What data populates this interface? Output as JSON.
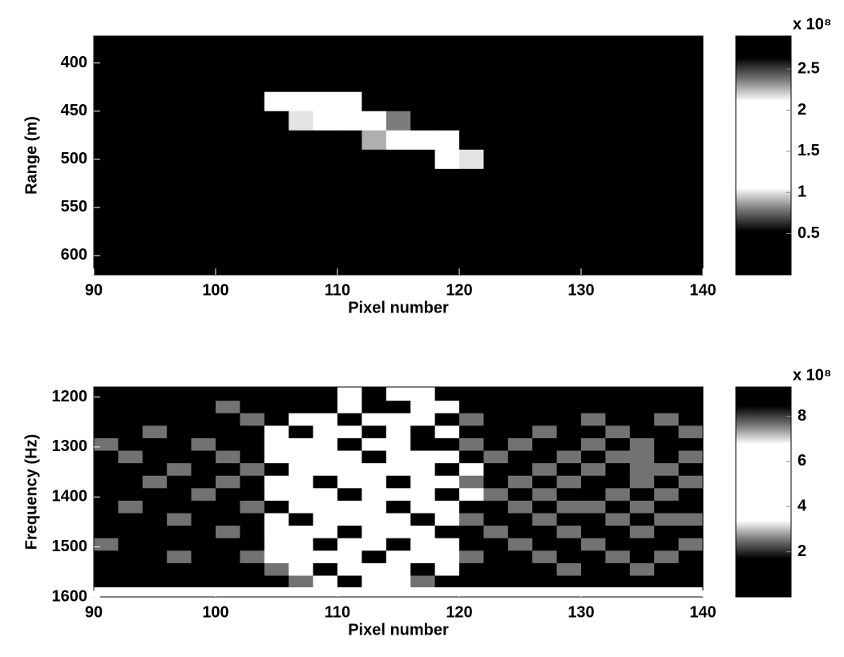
{
  "chart_data": [
    {
      "type": "heatmap",
      "xlabel": "Pixel number",
      "ylabel": "Range (m)",
      "x": [
        91,
        93,
        95,
        97,
        99,
        101,
        103,
        105,
        107,
        109,
        111,
        113,
        115,
        117,
        119,
        121,
        123,
        125,
        127,
        129,
        131,
        133,
        135,
        137,
        139
      ],
      "y": [
        380,
        400,
        420,
        440,
        460,
        480,
        500,
        520,
        540,
        560,
        580,
        600,
        620
      ],
      "values": [
        [
          0.1,
          0.1,
          0.1,
          0.1,
          0.1,
          0.1,
          0.1,
          0.1,
          0.1,
          0.1,
          0.1,
          0.1,
          0.1,
          0.1,
          0.1,
          0.1,
          0.1,
          0.1,
          0.1,
          0.1,
          0.1,
          0.1,
          0.1,
          0.1,
          0.1
        ],
        [
          0.1,
          0.1,
          0.1,
          0.1,
          0.1,
          0.1,
          0.1,
          0.1,
          0.1,
          0.1,
          0.1,
          0.1,
          0.3,
          0.1,
          0.1,
          0.1,
          0.1,
          0.1,
          0.1,
          0.1,
          0.1,
          0.1,
          0.1,
          0.1,
          0.1
        ],
        [
          0.1,
          0.1,
          0.1,
          0.1,
          0.1,
          0.1,
          0.1,
          0.1,
          0.1,
          0.1,
          0.1,
          0.3,
          0.1,
          0.1,
          0.1,
          0.1,
          0.1,
          0.1,
          0.1,
          0.1,
          0.1,
          0.1,
          0.1,
          0.1,
          0.1
        ],
        [
          0.1,
          0.1,
          0.1,
          0.1,
          0.1,
          0.1,
          0.1,
          1.2,
          1.5,
          1.8,
          1.3,
          0.1,
          0.1,
          0.1,
          0.1,
          0.1,
          0.1,
          0.1,
          0.1,
          0.1,
          0.1,
          0.1,
          0.1,
          0.1,
          0.1
        ],
        [
          0.1,
          0.1,
          0.1,
          0.1,
          0.1,
          0.1,
          0.1,
          0.1,
          1.0,
          1.6,
          1.5,
          1.7,
          0.8,
          0.1,
          0.1,
          0.1,
          0.1,
          0.1,
          0.1,
          0.1,
          0.1,
          0.1,
          0.1,
          0.1,
          0.1
        ],
        [
          0.1,
          0.1,
          0.1,
          0.1,
          0.1,
          0.1,
          0.1,
          0.1,
          0.1,
          0.1,
          0.1,
          0.9,
          1.4,
          1.6,
          1.1,
          0.1,
          0.1,
          0.1,
          0.1,
          0.1,
          0.1,
          0.1,
          0.1,
          0.1,
          0.1
        ],
        [
          0.1,
          0.1,
          0.1,
          0.1,
          0.1,
          0.1,
          0.1,
          0.1,
          0.1,
          0.1,
          0.1,
          0.1,
          0.3,
          0.1,
          1.3,
          1.0,
          0.1,
          0.1,
          0.1,
          0.1,
          0.1,
          0.1,
          0.1,
          0.1,
          0.1
        ],
        [
          0.1,
          0.1,
          0.1,
          0.1,
          0.1,
          0.1,
          0.1,
          0.1,
          0.1,
          0.1,
          0.1,
          0.1,
          0.3,
          0.1,
          0.1,
          0.1,
          0.1,
          0.1,
          0.1,
          0.1,
          0.1,
          0.1,
          0.1,
          0.1,
          0.1
        ],
        [
          0.1,
          0.1,
          0.1,
          0.1,
          0.1,
          0.1,
          0.1,
          0.1,
          0.1,
          0.1,
          0.1,
          0.1,
          0.1,
          0.1,
          0.1,
          0.1,
          0.1,
          0.1,
          0.1,
          0.1,
          0.1,
          0.1,
          0.1,
          0.1,
          0.1
        ],
        [
          0.1,
          0.1,
          0.1,
          0.1,
          0.1,
          0.1,
          0.1,
          0.1,
          0.1,
          0.1,
          0.1,
          0.1,
          0.3,
          0.1,
          0.1,
          0.1,
          0.1,
          0.1,
          0.1,
          0.1,
          0.1,
          0.1,
          0.1,
          0.1,
          0.1
        ],
        [
          0.1,
          0.1,
          0.1,
          0.1,
          0.1,
          0.1,
          0.1,
          0.1,
          0.1,
          0.1,
          0.1,
          0.1,
          0.1,
          0.1,
          0.1,
          0.1,
          0.1,
          0.1,
          0.1,
          0.1,
          0.1,
          0.1,
          0.1,
          0.3,
          0.1
        ],
        [
          0.1,
          0.1,
          0.1,
          0.1,
          0.1,
          0.1,
          0.1,
          0.1,
          0.1,
          0.1,
          0.1,
          0.1,
          0.3,
          0.1,
          0.1,
          0.1,
          0.1,
          0.1,
          0.1,
          0.1,
          0.1,
          0.1,
          0.1,
          0.1,
          0.1
        ],
        [
          0.1,
          0.1,
          0.1,
          0.1,
          0.1,
          0.1,
          0.1,
          0.1,
          0.1,
          0.1,
          0.1,
          0.1,
          0.1,
          0.1,
          0.1,
          0.1,
          0.1,
          0.1,
          0.1,
          0.1,
          0.1,
          0.1,
          0.1,
          0.1,
          0.1
        ]
      ],
      "xlim": [
        90,
        140
      ],
      "xticks": [
        90,
        100,
        110,
        120,
        130,
        140
      ],
      "ylim": [
        372,
        620
      ],
      "yticks": [
        400,
        450,
        500,
        550,
        600
      ],
      "y_reversed": true,
      "colormap": [
        "#000000",
        "#000000",
        "#000000",
        "#777777",
        "#ffffff",
        "#ffffff",
        "#ffffff",
        "#ffffff",
        "#ffffff",
        "#777777",
        "#000000",
        "#000000"
      ],
      "colorbar": {
        "clim": [
          0,
          2.9
        ],
        "ticks": [
          0.5,
          1,
          1.5,
          2,
          2.5
        ],
        "multiplier": "x 10⁸"
      }
    },
    {
      "type": "heatmap",
      "xlabel": "Pixel number",
      "ylabel": "Frequency (Hz)",
      "x": [
        91,
        93,
        95,
        97,
        99,
        101,
        103,
        105,
        107,
        109,
        111,
        113,
        115,
        117,
        119,
        121,
        123,
        125,
        127,
        129,
        131,
        133,
        135,
        137,
        139
      ],
      "y": [
        1195,
        1220,
        1245,
        1270,
        1295,
        1320,
        1345,
        1370,
        1395,
        1420,
        1445,
        1470,
        1495,
        1520,
        1545,
        1570,
        1590
      ],
      "values": [
        [
          1,
          1,
          1,
          1,
          1,
          1,
          1,
          1,
          1,
          1,
          5,
          9,
          5,
          5,
          9,
          1,
          1,
          1,
          1,
          1,
          1,
          1,
          1,
          1,
          1
        ],
        [
          1,
          1,
          1,
          1,
          1,
          2.5,
          1,
          1,
          1,
          9,
          5,
          1,
          9,
          5,
          5,
          1,
          1,
          1,
          1,
          1,
          1,
          1,
          1,
          1,
          1
        ],
        [
          1,
          1,
          1,
          1,
          1,
          1,
          2.5,
          1,
          5,
          5,
          9,
          5,
          5,
          5,
          1,
          2.5,
          1,
          1,
          1,
          1,
          2.5,
          1,
          1,
          2.5,
          1
        ],
        [
          1,
          1,
          2.5,
          1,
          1,
          1,
          1,
          5,
          9,
          5,
          5,
          9,
          5,
          1,
          5,
          1,
          1,
          1,
          2.5,
          1,
          1,
          2.5,
          1,
          1,
          2.5
        ],
        [
          2.5,
          1,
          1,
          1,
          2.5,
          1,
          1,
          5,
          5,
          5,
          9,
          5,
          5,
          9,
          1,
          2.5,
          1,
          2.5,
          1,
          1,
          2.5,
          1,
          2.5,
          1,
          1
        ],
        [
          1,
          2.5,
          1,
          1,
          1,
          2.5,
          1,
          5,
          5,
          5,
          5,
          9,
          5,
          5,
          5,
          1,
          2.5,
          1,
          1,
          2.5,
          1,
          2.5,
          2.5,
          1,
          2.5
        ],
        [
          1,
          1,
          1,
          2.5,
          1,
          1,
          2.5,
          9,
          5,
          5,
          5,
          5,
          5,
          5,
          9,
          5,
          1,
          1,
          2.5,
          1,
          2.5,
          1,
          2.5,
          2.5,
          1
        ],
        [
          1,
          1,
          2.5,
          1,
          1,
          2.5,
          1,
          5,
          5,
          9,
          5,
          5,
          9,
          5,
          5,
          2.5,
          1,
          2.5,
          1,
          2.5,
          1,
          1,
          2.5,
          1,
          2.5
        ],
        [
          1,
          1,
          1,
          1,
          2.5,
          1,
          1,
          5,
          5,
          5,
          9,
          5,
          5,
          5,
          1,
          5,
          2.5,
          1,
          2.5,
          1,
          1,
          2.5,
          1,
          2.5,
          1
        ],
        [
          1,
          2.5,
          1,
          1,
          1,
          1,
          2.5,
          1,
          5,
          5,
          5,
          5,
          9,
          5,
          5,
          1,
          1,
          2.5,
          1,
          2.5,
          2.5,
          1,
          2.5,
          1,
          1
        ],
        [
          1,
          1,
          1,
          2.5,
          1,
          1,
          1,
          5,
          9,
          5,
          5,
          5,
          5,
          9,
          5,
          2.5,
          1,
          1,
          2.5,
          1,
          1,
          2.5,
          1,
          2.5,
          2.5
        ],
        [
          1,
          1,
          1,
          1,
          1,
          2.5,
          1,
          5,
          5,
          5,
          9,
          5,
          5,
          5,
          1,
          1,
          2.5,
          1,
          1,
          2.5,
          1,
          1,
          2.5,
          1,
          1
        ],
        [
          2.5,
          1,
          1,
          1,
          1,
          1,
          1,
          5,
          5,
          9,
          5,
          5,
          9,
          5,
          5,
          1,
          1,
          2.5,
          1,
          1,
          2.5,
          1,
          1,
          1,
          2.5
        ],
        [
          1,
          1,
          1,
          2.5,
          1,
          1,
          2.5,
          5,
          5,
          5,
          5,
          9,
          5,
          5,
          5,
          2.5,
          1,
          1,
          2.5,
          1,
          1,
          2.5,
          1,
          2.5,
          1
        ],
        [
          1,
          1,
          1,
          1,
          1,
          1,
          1,
          2.5,
          5,
          9,
          5,
          5,
          5,
          9,
          5,
          1,
          1,
          1,
          1,
          2.5,
          1,
          1,
          2.5,
          1,
          1
        ],
        [
          1,
          1,
          1,
          1,
          1,
          1,
          1,
          1,
          2.5,
          5,
          1,
          5,
          5,
          2.5,
          1,
          1,
          1,
          1,
          1,
          1,
          1,
          1,
          1,
          1,
          1
        ],
        [
          null,
          null,
          null,
          null,
          null,
          null,
          null,
          null,
          null,
          null,
          null,
          null,
          null,
          null,
          null,
          null,
          null,
          null,
          null,
          null,
          null,
          null,
          null,
          null,
          null
        ]
      ],
      "xlim": [
        90,
        140
      ],
      "xticks": [
        90,
        100,
        110,
        120,
        130,
        140
      ],
      "ylim": [
        1180,
        1600
      ],
      "yticks": [
        1200,
        1300,
        1400,
        1500,
        1600
      ],
      "y_reversed": true,
      "colormap": [
        "#000000",
        "#000000",
        "#000000",
        "#777777",
        "#ffffff",
        "#ffffff",
        "#ffffff",
        "#ffffff",
        "#ffffff",
        "#777777",
        "#000000",
        "#000000"
      ],
      "colorbar": {
        "clim": [
          0,
          9.3
        ],
        "ticks": [
          2,
          4,
          6,
          8
        ],
        "multiplier": "x 10⁸"
      }
    }
  ]
}
